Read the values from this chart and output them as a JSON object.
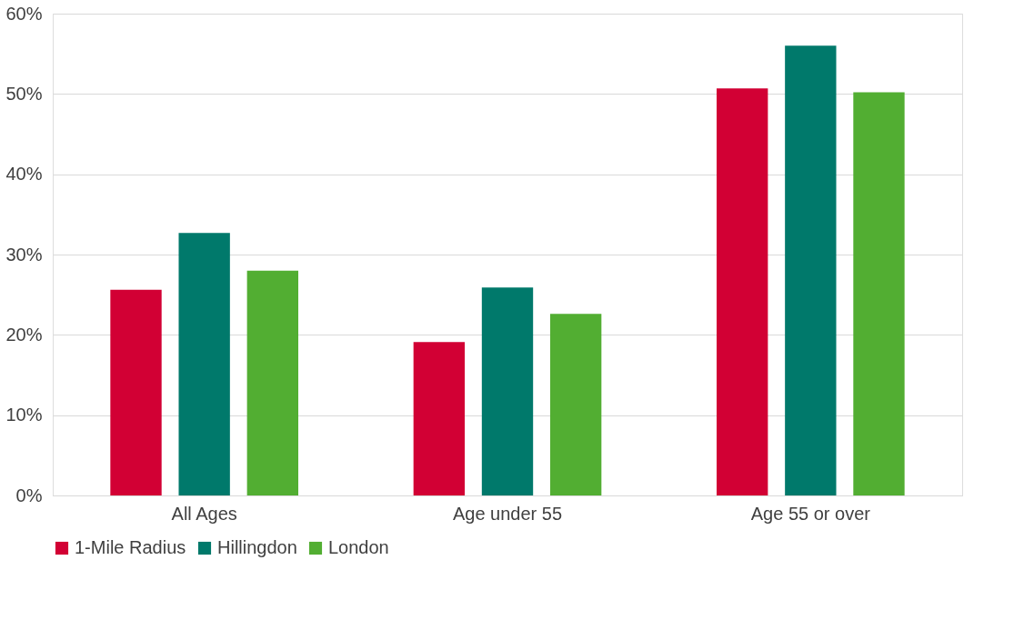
{
  "chart_data": {
    "type": "bar",
    "categories": [
      "All Ages",
      "Age under 55",
      "Age 55 or over"
    ],
    "series": [
      {
        "name": "1-Mile Radius",
        "color": "#d20034",
        "values": [
          25.6,
          19.1,
          50.7
        ]
      },
      {
        "name": "Hillingdon",
        "color": "#00796b",
        "values": [
          32.7,
          25.9,
          56.0
        ]
      },
      {
        "name": "London",
        "color": "#52ae32",
        "values": [
          28.0,
          22.6,
          50.2
        ]
      }
    ],
    "ylim": [
      0,
      60
    ],
    "yticks": [
      {
        "value": 0,
        "label": "0%"
      },
      {
        "value": 10,
        "label": "10%"
      },
      {
        "value": 20,
        "label": "20%"
      },
      {
        "value": 30,
        "label": "30%"
      },
      {
        "value": 40,
        "label": "40%"
      },
      {
        "value": 50,
        "label": "50%"
      },
      {
        "value": 60,
        "label": "60%"
      }
    ],
    "grid": "y",
    "legend": "bottom"
  }
}
